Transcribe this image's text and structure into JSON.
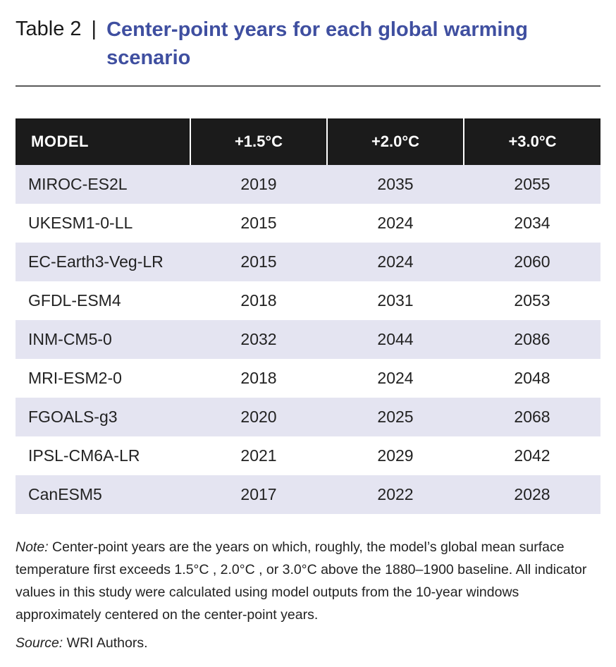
{
  "header": {
    "table_number": "Table 2",
    "separator": "|",
    "title": "Center-point years for each global warming scenario"
  },
  "table": {
    "columns": [
      "MODEL",
      "+1.5°C",
      "+2.0°C",
      "+3.0°C"
    ],
    "rows": [
      {
        "model": "MIROC-ES2L",
        "v15": "2019",
        "v20": "2035",
        "v30": "2055"
      },
      {
        "model": "UKESM1-0-LL",
        "v15": "2015",
        "v20": "2024",
        "v30": "2034"
      },
      {
        "model": "EC-Earth3-Veg-LR",
        "v15": "2015",
        "v20": "2024",
        "v30": "2060"
      },
      {
        "model": "GFDL-ESM4",
        "v15": "2018",
        "v20": "2031",
        "v30": "2053"
      },
      {
        "model": "INM-CM5-0",
        "v15": "2032",
        "v20": "2044",
        "v30": "2086"
      },
      {
        "model": "MRI-ESM2-0",
        "v15": "2018",
        "v20": "2024",
        "v30": "2048"
      },
      {
        "model": "FGOALS-g3",
        "v15": "2020",
        "v20": "2025",
        "v30": "2068"
      },
      {
        "model": "IPSL-CM6A-LR",
        "v15": "2021",
        "v20": "2029",
        "v30": "2042"
      },
      {
        "model": "CanESM5",
        "v15": "2017",
        "v20": "2022",
        "v30": "2028"
      }
    ],
    "colors": {
      "header_bg": "#1b1b1b",
      "shade_row": "#e4e4f1",
      "title": "#3f4fa0"
    }
  },
  "note": {
    "label": "Note:",
    "text": " Center-point years are the years on which, roughly, the model’s global mean surface temperature first exceeds 1.5°C , 2.0°C , or 3.0°C  above the 1880–1900 baseline. All indicator values in this study were calculated using model outputs from the 10-year windows approximately centered on the center-point years."
  },
  "source": {
    "label": "Source:",
    "text": " WRI Authors."
  }
}
